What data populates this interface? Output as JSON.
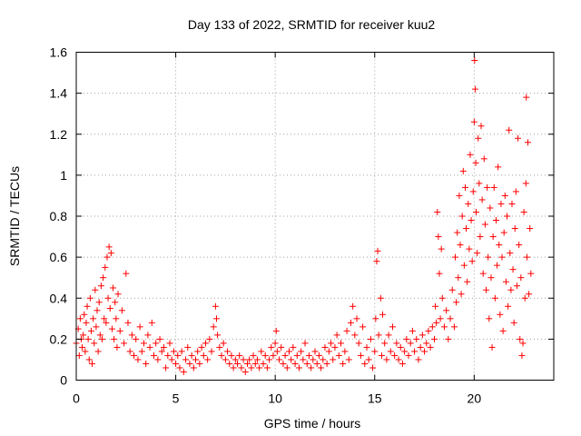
{
  "chart_data": {
    "type": "scatter",
    "title": "Day 133 of 2022, SRMTID for receiver kuu2",
    "xlabel": "GPS time / hours",
    "ylabel": "SRMTID / TECUs",
    "xlim": [
      0,
      24
    ],
    "ylim": [
      0,
      1.6
    ],
    "xticks": [
      0,
      5,
      10,
      15,
      20
    ],
    "xtick_labels": [
      "0",
      "5",
      "10",
      "15",
      "20"
    ],
    "yticks": [
      0,
      0.2,
      0.4,
      0.6,
      0.8,
      1.0,
      1.2,
      1.4,
      1.6
    ],
    "ytick_labels": [
      "0",
      "0.2",
      "0.4",
      "0.6",
      "0.8",
      "1",
      "1.2",
      "1.4",
      "1.6"
    ],
    "grid": true,
    "marker": "+",
    "color": "#ff0000",
    "series": [
      {
        "name": "SRMTID",
        "points": [
          [
            0.0,
            0.18
          ],
          [
            0.1,
            0.25
          ],
          [
            0.15,
            0.12
          ],
          [
            0.2,
            0.3
          ],
          [
            0.25,
            0.2
          ],
          [
            0.3,
            0.16
          ],
          [
            0.35,
            0.22
          ],
          [
            0.4,
            0.32
          ],
          [
            0.45,
            0.14
          ],
          [
            0.5,
            0.28
          ],
          [
            0.55,
            0.36
          ],
          [
            0.6,
            0.2
          ],
          [
            0.65,
            0.1
          ],
          [
            0.7,
            0.4
          ],
          [
            0.75,
            0.24
          ],
          [
            0.8,
            0.08
          ],
          [
            0.85,
            0.3
          ],
          [
            0.9,
            0.18
          ],
          [
            0.95,
            0.44
          ],
          [
            1.0,
            0.26
          ],
          [
            1.05,
            0.34
          ],
          [
            1.1,
            0.14
          ],
          [
            1.15,
            0.38
          ],
          [
            1.2,
            0.22
          ],
          [
            1.25,
            0.46
          ],
          [
            1.3,
            0.2
          ],
          [
            1.35,
            0.5
          ],
          [
            1.4,
            0.3
          ],
          [
            1.45,
            0.55
          ],
          [
            1.5,
            0.28
          ],
          [
            1.55,
            0.6
          ],
          [
            1.6,
            0.4
          ],
          [
            1.65,
            0.65
          ],
          [
            1.7,
            0.35
          ],
          [
            1.75,
            0.62
          ],
          [
            1.8,
            0.25
          ],
          [
            1.85,
            0.45
          ],
          [
            1.9,
            0.2
          ],
          [
            1.95,
            0.38
          ],
          [
            2.0,
            0.3
          ],
          [
            2.05,
            0.16
          ],
          [
            2.1,
            0.42
          ],
          [
            2.2,
            0.24
          ],
          [
            2.3,
            0.34
          ],
          [
            2.4,
            0.18
          ],
          [
            2.5,
            0.52
          ],
          [
            2.6,
            0.28
          ],
          [
            2.7,
            0.14
          ],
          [
            2.8,
            0.22
          ],
          [
            2.9,
            0.12
          ],
          [
            3.0,
            0.2
          ],
          [
            3.1,
            0.1
          ],
          [
            3.2,
            0.26
          ],
          [
            3.3,
            0.14
          ],
          [
            3.4,
            0.18
          ],
          [
            3.5,
            0.08
          ],
          [
            3.6,
            0.22
          ],
          [
            3.7,
            0.16
          ],
          [
            3.8,
            0.28
          ],
          [
            3.9,
            0.12
          ],
          [
            4.0,
            0.18
          ],
          [
            4.1,
            0.1
          ],
          [
            4.2,
            0.2
          ],
          [
            4.3,
            0.14
          ],
          [
            4.4,
            0.16
          ],
          [
            4.5,
            0.06
          ],
          [
            4.6,
            0.12
          ],
          [
            4.7,
            0.18
          ],
          [
            4.8,
            0.1
          ],
          [
            4.9,
            0.14
          ],
          [
            5.0,
            0.08
          ],
          [
            5.1,
            0.12
          ],
          [
            5.2,
            0.06
          ],
          [
            5.3,
            0.14
          ],
          [
            5.4,
            0.04
          ],
          [
            5.5,
            0.1
          ],
          [
            5.6,
            0.16
          ],
          [
            5.7,
            0.08
          ],
          [
            5.8,
            0.12
          ],
          [
            5.9,
            0.06
          ],
          [
            6.0,
            0.1
          ],
          [
            6.1,
            0.14
          ],
          [
            6.2,
            0.08
          ],
          [
            6.3,
            0.16
          ],
          [
            6.4,
            0.12
          ],
          [
            6.5,
            0.18
          ],
          [
            6.6,
            0.1
          ],
          [
            6.7,
            0.2
          ],
          [
            6.8,
            0.14
          ],
          [
            6.9,
            0.26
          ],
          [
            7.0,
            0.36
          ],
          [
            7.05,
            0.3
          ],
          [
            7.1,
            0.22
          ],
          [
            7.2,
            0.16
          ],
          [
            7.3,
            0.12
          ],
          [
            7.4,
            0.18
          ],
          [
            7.5,
            0.1
          ],
          [
            7.6,
            0.14
          ],
          [
            7.7,
            0.08
          ],
          [
            7.8,
            0.12
          ],
          [
            7.9,
            0.06
          ],
          [
            8.0,
            0.1
          ],
          [
            8.1,
            0.08
          ],
          [
            8.2,
            0.12
          ],
          [
            8.3,
            0.06
          ],
          [
            8.4,
            0.1
          ],
          [
            8.5,
            0.04
          ],
          [
            8.6,
            0.08
          ],
          [
            8.7,
            0.1
          ],
          [
            8.8,
            0.06
          ],
          [
            8.9,
            0.12
          ],
          [
            9.0,
            0.08
          ],
          [
            9.1,
            0.1
          ],
          [
            9.2,
            0.06
          ],
          [
            9.3,
            0.14
          ],
          [
            9.4,
            0.08
          ],
          [
            9.5,
            0.12
          ],
          [
            9.6,
            0.06
          ],
          [
            9.7,
            0.1
          ],
          [
            9.8,
            0.16
          ],
          [
            9.9,
            0.12
          ],
          [
            10.0,
            0.18
          ],
          [
            10.05,
            0.24
          ],
          [
            10.1,
            0.14
          ],
          [
            10.2,
            0.1
          ],
          [
            10.3,
            0.16
          ],
          [
            10.4,
            0.08
          ],
          [
            10.5,
            0.12
          ],
          [
            10.6,
            0.06
          ],
          [
            10.7,
            0.14
          ],
          [
            10.8,
            0.1
          ],
          [
            10.9,
            0.16
          ],
          [
            11.0,
            0.08
          ],
          [
            11.1,
            0.12
          ],
          [
            11.2,
            0.06
          ],
          [
            11.3,
            0.14
          ],
          [
            11.4,
            0.1
          ],
          [
            11.5,
            0.18
          ],
          [
            11.6,
            0.08
          ],
          [
            11.7,
            0.12
          ],
          [
            11.8,
            0.06
          ],
          [
            11.9,
            0.1
          ],
          [
            12.0,
            0.14
          ],
          [
            12.1,
            0.08
          ],
          [
            12.2,
            0.12
          ],
          [
            12.3,
            0.06
          ],
          [
            12.4,
            0.1
          ],
          [
            12.5,
            0.16
          ],
          [
            12.6,
            0.08
          ],
          [
            12.7,
            0.14
          ],
          [
            12.8,
            0.18
          ],
          [
            12.9,
            0.1
          ],
          [
            13.0,
            0.16
          ],
          [
            13.1,
            0.22
          ],
          [
            13.2,
            0.12
          ],
          [
            13.3,
            0.18
          ],
          [
            13.4,
            0.08
          ],
          [
            13.5,
            0.14
          ],
          [
            13.6,
            0.24
          ],
          [
            13.7,
            0.1
          ],
          [
            13.8,
            0.28
          ],
          [
            13.9,
            0.36
          ],
          [
            14.0,
            0.22
          ],
          [
            14.1,
            0.3
          ],
          [
            14.2,
            0.18
          ],
          [
            14.3,
            0.12
          ],
          [
            14.4,
            0.26
          ],
          [
            14.5,
            0.08
          ],
          [
            14.6,
            0.16
          ],
          [
            14.7,
            0.1
          ],
          [
            14.8,
            0.2
          ],
          [
            14.9,
            0.06
          ],
          [
            15.0,
            0.14
          ],
          [
            15.05,
            0.3
          ],
          [
            15.1,
            0.58
          ],
          [
            15.15,
            0.63
          ],
          [
            15.2,
            0.22
          ],
          [
            15.3,
            0.4
          ],
          [
            15.35,
            0.12
          ],
          [
            15.4,
            0.32
          ],
          [
            15.5,
            0.18
          ],
          [
            15.6,
            0.1
          ],
          [
            15.7,
            0.22
          ],
          [
            15.8,
            0.14
          ],
          [
            15.9,
            0.26
          ],
          [
            16.0,
            0.12
          ],
          [
            16.1,
            0.18
          ],
          [
            16.2,
            0.1
          ],
          [
            16.3,
            0.16
          ],
          [
            16.4,
            0.08
          ],
          [
            16.5,
            0.14
          ],
          [
            16.6,
            0.2
          ],
          [
            16.7,
            0.12
          ],
          [
            16.8,
            0.18
          ],
          [
            16.9,
            0.24
          ],
          [
            17.0,
            0.14
          ],
          [
            17.1,
            0.2
          ],
          [
            17.2,
            0.1
          ],
          [
            17.3,
            0.16
          ],
          [
            17.4,
            0.22
          ],
          [
            17.5,
            0.14
          ],
          [
            17.6,
            0.18
          ],
          [
            17.7,
            0.24
          ],
          [
            17.8,
            0.16
          ],
          [
            17.9,
            0.26
          ],
          [
            18.0,
            0.2
          ],
          [
            18.05,
            0.36
          ],
          [
            18.1,
            0.28
          ],
          [
            18.15,
            0.82
          ],
          [
            18.2,
            0.7
          ],
          [
            18.25,
            0.52
          ],
          [
            18.3,
            0.3
          ],
          [
            18.35,
            0.64
          ],
          [
            18.4,
            0.4
          ],
          [
            18.5,
            0.26
          ],
          [
            18.6,
            0.34
          ],
          [
            18.7,
            0.2
          ],
          [
            18.8,
            0.3
          ],
          [
            18.9,
            0.44
          ],
          [
            19.0,
            0.26
          ],
          [
            19.05,
            0.6
          ],
          [
            19.1,
            0.38
          ],
          [
            19.15,
            0.72
          ],
          [
            19.2,
            0.5
          ],
          [
            19.25,
            0.9
          ],
          [
            19.3,
            0.66
          ],
          [
            19.35,
            0.42
          ],
          [
            19.4,
            0.8
          ],
          [
            19.45,
            1.02
          ],
          [
            19.5,
            0.56
          ],
          [
            19.55,
            0.94
          ],
          [
            19.6,
            0.74
          ],
          [
            19.65,
            0.48
          ],
          [
            19.7,
            0.86
          ],
          [
            19.75,
            0.64
          ],
          [
            19.8,
            1.1
          ],
          [
            19.85,
            0.78
          ],
          [
            19.9,
            0.58
          ],
          [
            19.95,
            0.92
          ],
          [
            20.0,
            1.26
          ],
          [
            20.02,
            1.56
          ],
          [
            20.05,
            1.42
          ],
          [
            20.08,
            1.06
          ],
          [
            20.1,
            0.82
          ],
          [
            20.15,
            0.62
          ],
          [
            20.2,
            1.18
          ],
          [
            20.25,
            0.96
          ],
          [
            20.3,
            0.7
          ],
          [
            20.35,
            1.24
          ],
          [
            20.4,
            0.88
          ],
          [
            20.45,
            0.52
          ],
          [
            20.5,
            1.08
          ],
          [
            20.55,
            0.76
          ],
          [
            20.6,
            0.44
          ],
          [
            20.65,
            0.94
          ],
          [
            20.7,
            0.6
          ],
          [
            20.75,
            0.3
          ],
          [
            20.8,
            0.84
          ],
          [
            20.85,
            0.5
          ],
          [
            20.9,
            0.16
          ],
          [
            20.95,
            0.7
          ],
          [
            21.0,
            0.94
          ],
          [
            21.05,
            0.4
          ],
          [
            21.1,
            0.78
          ],
          [
            21.15,
            0.56
          ],
          [
            21.2,
            1.04
          ],
          [
            21.25,
            0.66
          ],
          [
            21.3,
            0.32
          ],
          [
            21.35,
            0.86
          ],
          [
            21.4,
            0.6
          ],
          [
            21.45,
            0.24
          ],
          [
            21.5,
            0.72
          ],
          [
            21.55,
            0.9
          ],
          [
            21.6,
            0.48
          ],
          [
            21.65,
            0.8
          ],
          [
            21.7,
            0.36
          ],
          [
            21.75,
            1.22
          ],
          [
            21.8,
            0.62
          ],
          [
            21.85,
            0.44
          ],
          [
            21.9,
            0.86
          ],
          [
            21.95,
            0.54
          ],
          [
            22.0,
            0.28
          ],
          [
            22.05,
            0.74
          ],
          [
            22.1,
            0.92
          ],
          [
            22.15,
            0.46
          ],
          [
            22.2,
            1.18
          ],
          [
            22.25,
            0.66
          ],
          [
            22.3,
            0.2
          ],
          [
            22.35,
            0.5
          ],
          [
            22.4,
            0.12
          ],
          [
            22.45,
            0.18
          ],
          [
            22.5,
            0.82
          ],
          [
            22.55,
            0.4
          ],
          [
            22.6,
            0.96
          ],
          [
            22.62,
            1.38
          ],
          [
            22.65,
            0.6
          ],
          [
            22.7,
            1.16
          ],
          [
            22.75,
            0.42
          ],
          [
            22.8,
            0.74
          ],
          [
            22.85,
            0.52
          ]
        ]
      }
    ]
  }
}
